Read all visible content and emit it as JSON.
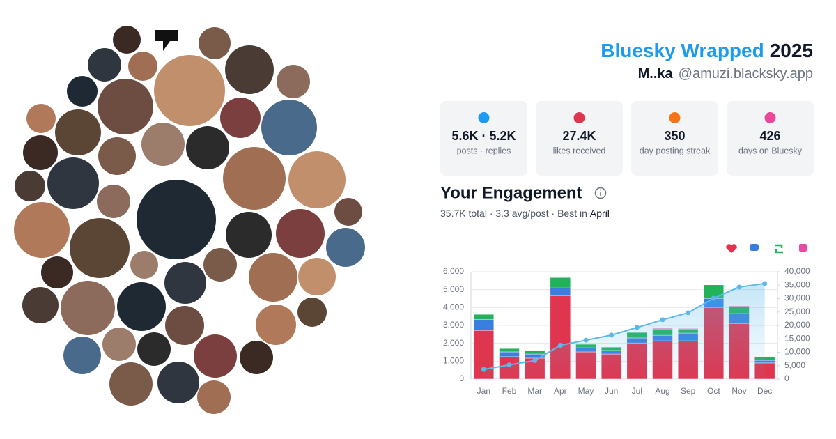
{
  "header": {
    "title": "Bluesky Wrapped",
    "year": "2025",
    "name": "M..ka",
    "handle": "@amuzi.blacksky.app"
  },
  "stats": [
    {
      "value": "5.6K · 5.2K",
      "label": "posts · replies"
    },
    {
      "value": "27.4K",
      "label": "likes received"
    },
    {
      "value": "350",
      "label": "day posting streak"
    },
    {
      "value": "426",
      "label": "days on Bluesky"
    }
  ],
  "engagement": {
    "heading": "Your Engagement",
    "summary": "35.7K total · 3.3 avg/post · Best in",
    "best": "April"
  },
  "chart_data": {
    "type": "bar",
    "stacked": true,
    "categories": [
      "Jan",
      "Feb",
      "Mar",
      "Apr",
      "May",
      "Jun",
      "Jul",
      "Aug",
      "Sep",
      "Oct",
      "Nov",
      "Dec"
    ],
    "series": [
      {
        "color": "#e0354f",
        "values": [
          2720,
          1250,
          1170,
          4670,
          1520,
          1400,
          2020,
          2140,
          2140,
          4010,
          3110,
          900
        ]
      },
      {
        "color": "#3a7fe0",
        "values": [
          620,
          270,
          230,
          430,
          230,
          200,
          280,
          310,
          430,
          500,
          550,
          150
        ]
      },
      {
        "color": "#22b35a",
        "values": [
          280,
          190,
          200,
          580,
          200,
          190,
          310,
          350,
          230,
          700,
          390,
          200
        ]
      },
      {
        "color": "#e84aa6",
        "values": [
          30,
          20,
          20,
          60,
          20,
          20,
          30,
          40,
          30,
          60,
          40,
          20
        ]
      },
      {
        "type": "line",
        "axis": "y2",
        "color": "#5bb8e8",
        "values": [
          3600,
          5300,
          6900,
          12600,
          14500,
          16400,
          19200,
          22100,
          24700,
          30100,
          34300,
          35600
        ]
      }
    ],
    "ylim": [
      0,
      6000
    ],
    "yticks": [
      0,
      {
        "value": 1000,
        "label": "1,000"
      },
      {
        "value": 2000,
        "label": "2,000"
      },
      {
        "value": 3000,
        "label": "3,000"
      },
      {
        "value": 4000,
        "label": "4,000"
      },
      {
        "value": 5000,
        "label": "5,000"
      },
      {
        "value": 6000,
        "label": "6,000"
      }
    ],
    "y2lim": [
      0,
      40000
    ],
    "y2ticks": [
      0,
      {
        "value": 5000,
        "label": "5,000"
      },
      {
        "value": 10000,
        "label": "10,000"
      },
      {
        "value": 15000,
        "label": "15,000"
      },
      {
        "value": 20000,
        "label": "20,000"
      },
      {
        "value": 25000,
        "label": "25,000"
      },
      {
        "value": 30000,
        "label": "30,000"
      },
      {
        "value": 35000,
        "label": "35,000"
      },
      {
        "value": 40000,
        "label": "40,000"
      }
    ],
    "grid": true
  }
}
